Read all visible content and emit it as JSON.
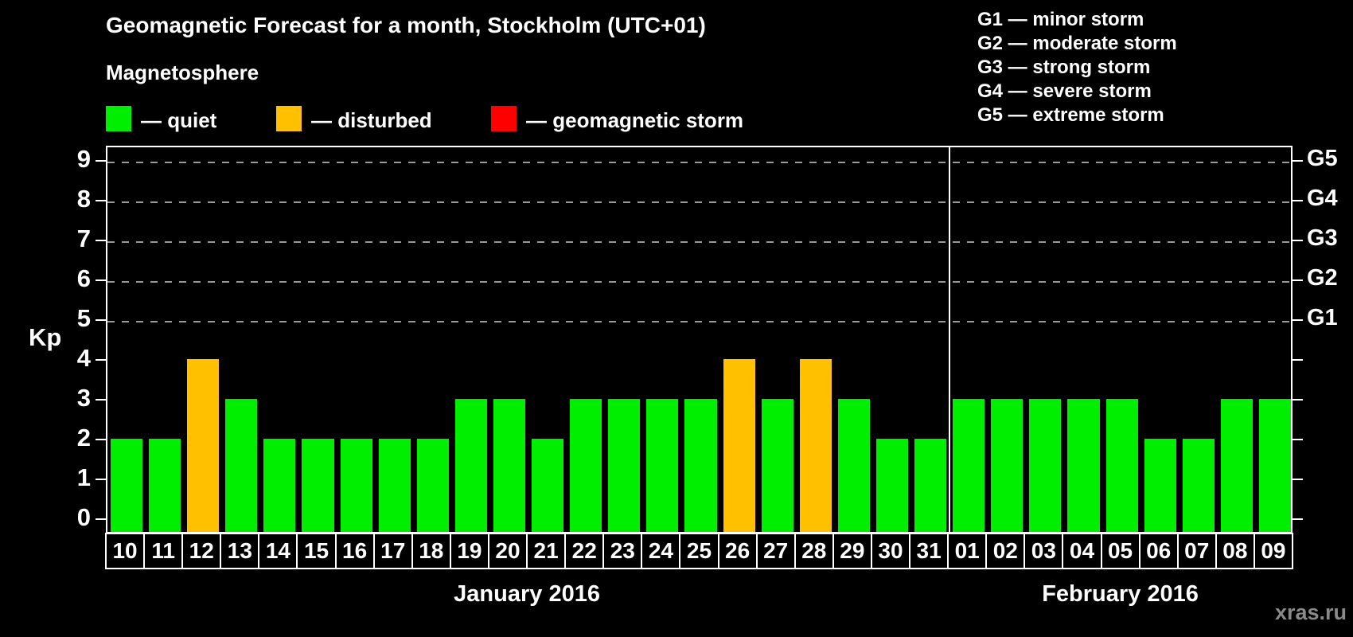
{
  "title": "Geomagnetic Forecast for a month, Stockholm (UTC+01)",
  "legend": {
    "heading": "Magnetosphere",
    "items": [
      {
        "label": "— quiet",
        "status": "quiet",
        "color": "#00ee00"
      },
      {
        "label": "— disturbed",
        "status": "disturbed",
        "color": "#ffc000"
      },
      {
        "label": "— geomagnetic storm",
        "status": "storm",
        "color": "#ff0000"
      }
    ]
  },
  "g_legend": [
    "G1 — minor storm",
    "G2 — moderate storm",
    "G3 — strong storm",
    "G4 — severe storm",
    "G5 — extreme storm"
  ],
  "watermark": "xras.ru",
  "chart_data": {
    "type": "bar",
    "title": "Geomagnetic Forecast for a month, Stockholm (UTC+01)",
    "ylabel": "Kp",
    "xlabel": "",
    "ylim": [
      0,
      9
    ],
    "y_ticks": [
      0,
      1,
      2,
      3,
      4,
      5,
      6,
      7,
      8,
      9
    ],
    "gridlines_at_kp": [
      5,
      6,
      7,
      8,
      9
    ],
    "grid": "dashed-above-kp5-only",
    "legend_position": "top",
    "right_axis_labels": [
      {
        "kp": 5,
        "label": "G1"
      },
      {
        "kp": 6,
        "label": "G2"
      },
      {
        "kp": 7,
        "label": "G3"
      },
      {
        "kp": 8,
        "label": "G4"
      },
      {
        "kp": 9,
        "label": "G5"
      }
    ],
    "months": [
      {
        "label": "January 2016",
        "days": 22
      },
      {
        "label": "February 2016",
        "days": 9
      }
    ],
    "status_colors": {
      "quiet": "#00ee00",
      "disturbed": "#ffc000",
      "storm": "#ff0000"
    },
    "bars": [
      {
        "day": "10",
        "kp": 2,
        "status": "quiet"
      },
      {
        "day": "11",
        "kp": 2,
        "status": "quiet"
      },
      {
        "day": "12",
        "kp": 4,
        "status": "disturbed"
      },
      {
        "day": "13",
        "kp": 3,
        "status": "quiet"
      },
      {
        "day": "14",
        "kp": 2,
        "status": "quiet"
      },
      {
        "day": "15",
        "kp": 2,
        "status": "quiet"
      },
      {
        "day": "16",
        "kp": 2,
        "status": "quiet"
      },
      {
        "day": "17",
        "kp": 2,
        "status": "quiet"
      },
      {
        "day": "18",
        "kp": 2,
        "status": "quiet"
      },
      {
        "day": "19",
        "kp": 3,
        "status": "quiet"
      },
      {
        "day": "20",
        "kp": 3,
        "status": "quiet"
      },
      {
        "day": "21",
        "kp": 2,
        "status": "quiet"
      },
      {
        "day": "22",
        "kp": 3,
        "status": "quiet"
      },
      {
        "day": "23",
        "kp": 3,
        "status": "quiet"
      },
      {
        "day": "24",
        "kp": 3,
        "status": "quiet"
      },
      {
        "day": "25",
        "kp": 3,
        "status": "quiet"
      },
      {
        "day": "26",
        "kp": 4,
        "status": "disturbed"
      },
      {
        "day": "27",
        "kp": 3,
        "status": "quiet"
      },
      {
        "day": "28",
        "kp": 4,
        "status": "disturbed"
      },
      {
        "day": "29",
        "kp": 3,
        "status": "quiet"
      },
      {
        "day": "30",
        "kp": 2,
        "status": "quiet"
      },
      {
        "day": "31",
        "kp": 2,
        "status": "quiet"
      },
      {
        "day": "01",
        "kp": 3,
        "status": "quiet"
      },
      {
        "day": "02",
        "kp": 3,
        "status": "quiet"
      },
      {
        "day": "03",
        "kp": 3,
        "status": "quiet"
      },
      {
        "day": "04",
        "kp": 3,
        "status": "quiet"
      },
      {
        "day": "05",
        "kp": 3,
        "status": "quiet"
      },
      {
        "day": "06",
        "kp": 2,
        "status": "quiet"
      },
      {
        "day": "07",
        "kp": 2,
        "status": "quiet"
      },
      {
        "day": "08",
        "kp": 3,
        "status": "quiet"
      },
      {
        "day": "09",
        "kp": 3,
        "status": "quiet"
      }
    ]
  }
}
